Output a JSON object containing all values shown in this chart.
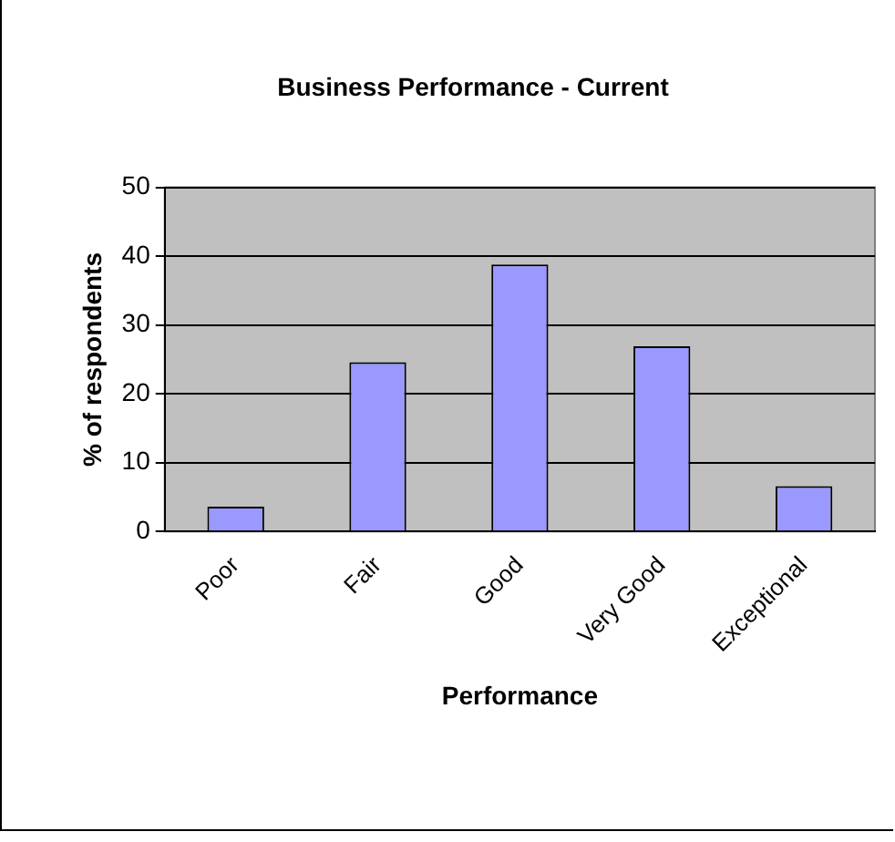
{
  "chart_data": {
    "type": "bar",
    "title": "Business Performance - Current",
    "categories": [
      "Poor",
      "Fair",
      "Good",
      "Very Good",
      "Exceptional"
    ],
    "values": [
      3.6,
      24.6,
      38.8,
      26.9,
      6.6
    ],
    "color": "#9999ff",
    "xlabel": "Performance",
    "ylabel": "% of respondents",
    "ylim": [
      0,
      50
    ],
    "yticks": [
      0,
      10,
      20,
      30,
      40,
      50
    ],
    "grid": "y",
    "legend": false
  }
}
